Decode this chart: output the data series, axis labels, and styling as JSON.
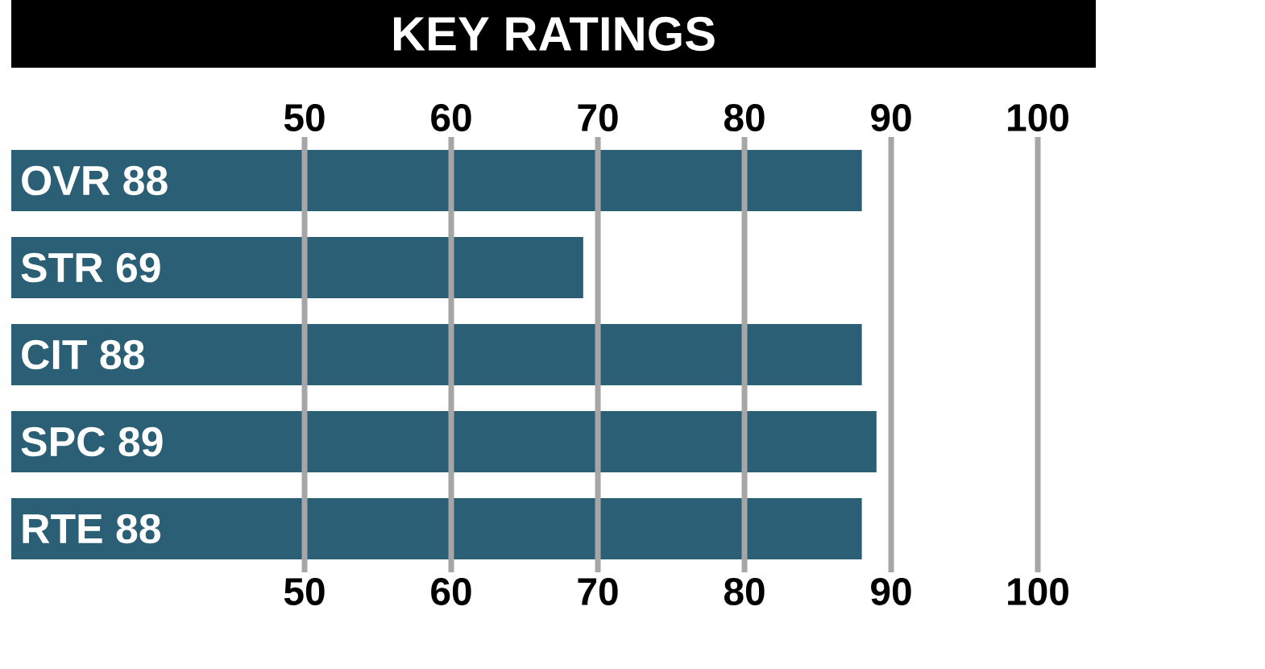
{
  "chart_data": {
    "type": "bar",
    "orientation": "horizontal",
    "title": "KEY RATINGS",
    "categories": [
      "OVR 88",
      "STR 69",
      "CIT 88",
      "SPC 89",
      "RTE 88"
    ],
    "values": [
      88,
      69,
      88,
      89,
      88
    ],
    "color": "#2b5f75",
    "xlim": [
      30,
      100
    ],
    "xticks": [
      50,
      60,
      70,
      80,
      90,
      100
    ],
    "x2lim": [
      30,
      100
    ],
    "x2ticks": [
      50,
      60,
      70,
      80,
      90,
      100
    ],
    "grid": "x"
  }
}
